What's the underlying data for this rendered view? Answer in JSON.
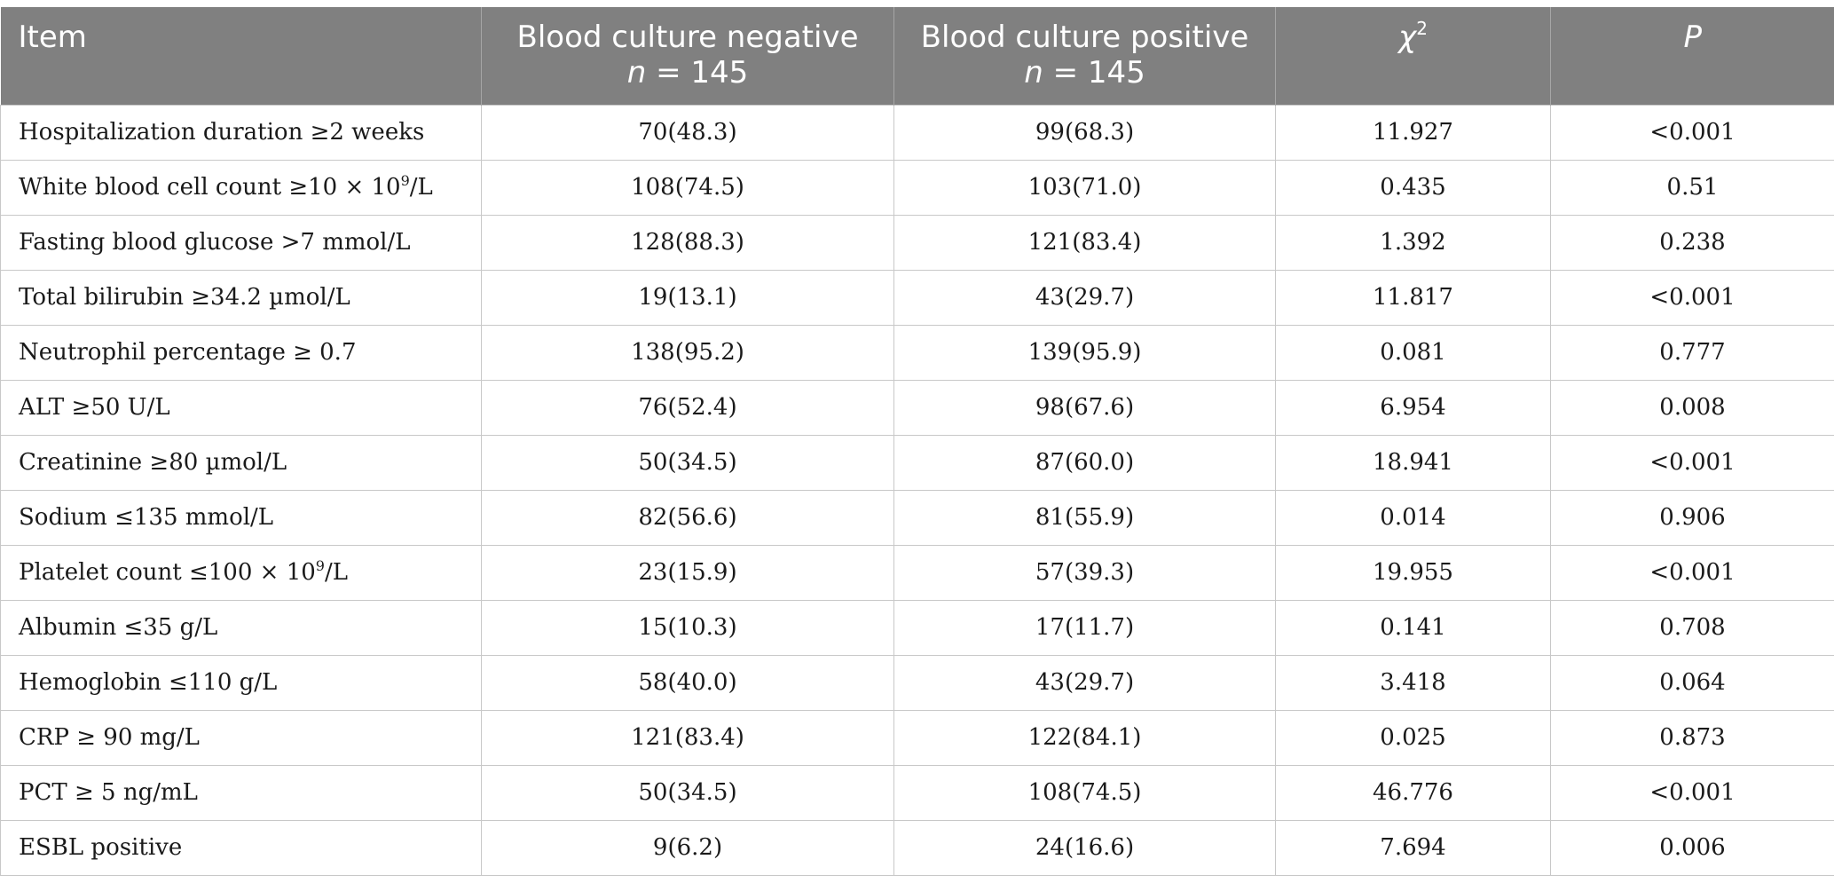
{
  "table": {
    "headers": {
      "item": "Item",
      "negative": {
        "title": "Blood culture negative",
        "n_label": "n",
        "n_value": " = 145"
      },
      "positive": {
        "title": "Blood culture positive",
        "n_label": "n",
        "n_value": " = 145"
      },
      "chi_symbol": "χ",
      "chi_sup": "2",
      "p": "P"
    },
    "rows": [
      {
        "item": "Hospitalization duration ≥2 weeks",
        "negative": "70(48.3)",
        "positive": "99(68.3)",
        "chi2": "11.927",
        "p": "<0.001"
      },
      {
        "item_prefix": "White blood cell count ≥10 × 10",
        "item_sup": "9",
        "item_suffix": "/L",
        "negative": "108(74.5)",
        "positive": "103(71.0)",
        "chi2": "0.435",
        "p": "0.51"
      },
      {
        "item": "Fasting blood glucose >7 mmol/L",
        "negative": "128(88.3)",
        "positive": "121(83.4)",
        "chi2": "1.392",
        "p": "0.238"
      },
      {
        "item": "Total bilirubin ≥34.2 µmol/L",
        "negative": "19(13.1)",
        "positive": "43(29.7)",
        "chi2": "11.817",
        "p": "<0.001"
      },
      {
        "item": "Neutrophil percentage ≥ 0.7",
        "negative": "138(95.2)",
        "positive": "139(95.9)",
        "chi2": "0.081",
        "p": "0.777"
      },
      {
        "item": "ALT ≥50 U/L",
        "negative": "76(52.4)",
        "positive": "98(67.6)",
        "chi2": "6.954",
        "p": "0.008"
      },
      {
        "item": "Creatinine ≥80 µmol/L",
        "negative": "50(34.5)",
        "positive": "87(60.0)",
        "chi2": "18.941",
        "p": "<0.001"
      },
      {
        "item": "Sodium ≤135 mmol/L",
        "negative": "82(56.6)",
        "positive": "81(55.9)",
        "chi2": "0.014",
        "p": "0.906"
      },
      {
        "item_prefix": "Platelet count ≤100 × 10",
        "item_sup": "9",
        "item_suffix": "/L",
        "negative": "23(15.9)",
        "positive": "57(39.3)",
        "chi2": "19.955",
        "p": "<0.001"
      },
      {
        "item": "Albumin ≤35 g/L",
        "negative": "15(10.3)",
        "positive": "17(11.7)",
        "chi2": "0.141",
        "p": "0.708"
      },
      {
        "item": "Hemoglobin ≤110 g/L",
        "negative": "58(40.0)",
        "positive": "43(29.7)",
        "chi2": "3.418",
        "p": "0.064"
      },
      {
        "item": "CRP ≥ 90 mg/L",
        "negative": "121(83.4)",
        "positive": "122(84.1)",
        "chi2": "0.025",
        "p": "0.873"
      },
      {
        "item": "PCT ≥ 5 ng/mL",
        "negative": "50(34.5)",
        "positive": "108(74.5)",
        "chi2": "46.776",
        "p": "<0.001"
      },
      {
        "item": "ESBL positive",
        "negative": "9(6.2)",
        "positive": "24(16.6)",
        "chi2": "7.694",
        "p": "0.006"
      }
    ]
  },
  "colors": {
    "header_bg": "#808080",
    "header_text": "#ffffff",
    "border": "#c8c8c8",
    "body_text": "#1a1a1a"
  }
}
